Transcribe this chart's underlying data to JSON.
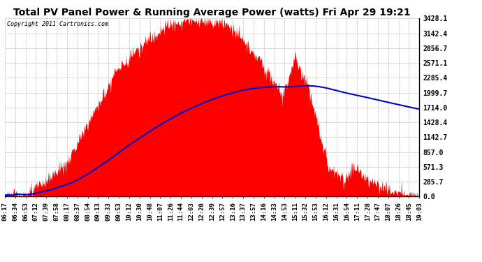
{
  "title": "Total PV Panel Power & Running Average Power (watts) Fri Apr 29 19:21",
  "copyright_text": "Copyright 2011 Cartronics.com",
  "y_max": 3428.1,
  "y_ticks": [
    0.0,
    285.7,
    571.3,
    857.0,
    1142.7,
    1428.4,
    1714.0,
    1999.7,
    2285.4,
    2571.1,
    2856.7,
    3142.4,
    3428.1
  ],
  "y_tick_labels": [
    "0.0",
    "285.7",
    "571.3",
    "857.0",
    "1142.7",
    "1428.4",
    "1714.0",
    "1999.7",
    "2285.4",
    "2571.1",
    "2856.7",
    "3142.4",
    "3428.1"
  ],
  "x_tick_labels": [
    "06:17",
    "06:34",
    "06:53",
    "07:12",
    "07:39",
    "07:58",
    "08:17",
    "08:37",
    "08:54",
    "09:13",
    "09:33",
    "09:53",
    "10:12",
    "10:30",
    "10:48",
    "11:07",
    "11:26",
    "11:44",
    "12:03",
    "12:20",
    "12:39",
    "12:57",
    "13:16",
    "13:37",
    "13:57",
    "14:16",
    "14:33",
    "14:53",
    "15:11",
    "15:32",
    "15:53",
    "16:12",
    "16:31",
    "16:54",
    "17:11",
    "17:28",
    "17:47",
    "18:07",
    "18:26",
    "18:45",
    "19:03"
  ],
  "fill_color": "#FF0000",
  "line_color": "#0000CC",
  "background_color": "#FFFFFF",
  "grid_color": "#AAAAAA",
  "title_fontsize": 10,
  "copyright_fontsize": 6,
  "tick_fontsize": 6.5,
  "y_tick_fontsize": 7
}
